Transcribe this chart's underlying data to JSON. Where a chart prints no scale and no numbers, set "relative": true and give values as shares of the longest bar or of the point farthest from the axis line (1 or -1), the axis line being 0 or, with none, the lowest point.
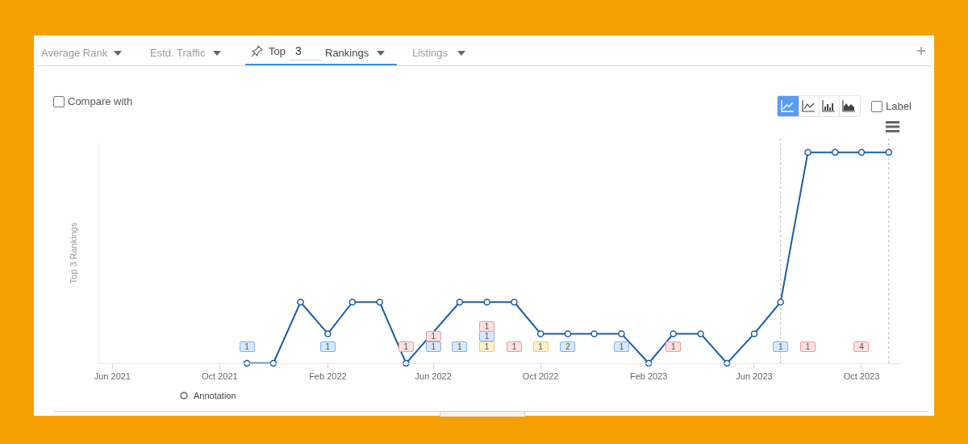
{
  "chart_data": {
    "type": "line",
    "ylabel": "Top 3 Rankings",
    "relative": true,
    "marker": "circle",
    "line_style": "solid",
    "x": [
      "2021-11",
      "2021-12",
      "2022-01",
      "2022-02",
      "2022-03",
      "2022-04",
      "2022-05",
      "2022-06",
      "2022-07",
      "2022-08",
      "2022-09",
      "2022-10",
      "2022-11",
      "2022-12",
      "2023-01",
      "2023-02",
      "2023-03",
      "2023-04",
      "2023-05",
      "2023-06",
      "2023-07",
      "2023-08",
      "2023-09",
      "2023-10",
      "2023-11"
    ],
    "xlim": [
      "2021-05-17",
      "2023-11-15"
    ],
    "xticks": [
      {
        "value": "2021-06",
        "label": "Jun 2021"
      },
      {
        "value": "2021-10",
        "label": "Oct 2021"
      },
      {
        "value": "2022-02",
        "label": "Feb 2022"
      },
      {
        "value": "2022-06",
        "label": "Jun 2022"
      },
      {
        "value": "2022-10",
        "label": "Oct 2022"
      },
      {
        "value": "2023-02",
        "label": "Feb 2023"
      },
      {
        "value": "2023-06",
        "label": "Jun 2023"
      },
      {
        "value": "2023-10",
        "label": "Oct 2023"
      }
    ],
    "series": [
      {
        "color": "#1b5ea8",
        "values": [
          0,
          0,
          0.29,
          0.14,
          0.29,
          0.29,
          0,
          null,
          0.29,
          0.29,
          0.29,
          0.14,
          0.14,
          0.14,
          0.14,
          0,
          0.14,
          0.14,
          0,
          0.14,
          0.29,
          1,
          1,
          1,
          1
        ]
      }
    ],
    "ref_lines": [
      {
        "axis": "x",
        "value": "2023-07",
        "color": "#c4c4c4",
        "line_style": "dotted"
      },
      {
        "axis": "x",
        "value": "2023-11",
        "color": "#c4c4c4",
        "line_style": "dotted"
      }
    ],
    "annotations": [
      "Average Rank",
      "Estd. Traffic",
      "Top",
      "3",
      "Rankings",
      "Listings",
      "Compare with",
      "Label",
      "Annotation",
      {
        "text": "1",
        "x": "2021-11"
      },
      {
        "text": "1",
        "x": "2022-02"
      },
      {
        "text": "1",
        "x": "2022-05"
      },
      {
        "text": "1",
        "x": "2022-06"
      },
      {
        "text": "1",
        "x": "2022-06"
      },
      {
        "text": "1",
        "x": "2022-07"
      },
      {
        "text": "1",
        "x": "2022-08"
      },
      {
        "text": "1",
        "x": "2022-08"
      },
      {
        "text": "1",
        "x": "2022-08"
      },
      {
        "text": "1",
        "x": "2022-09"
      },
      {
        "text": "1",
        "x": "2022-10"
      },
      {
        "text": "2",
        "x": "2022-11"
      },
      {
        "text": "1",
        "x": "2023-01"
      },
      {
        "text": "1",
        "x": "2023-03"
      },
      {
        "text": "1",
        "x": "2023-07"
      },
      {
        "text": "1",
        "x": "2023-08"
      },
      {
        "text": "4",
        "x": "2023-10"
      }
    ]
  }
}
